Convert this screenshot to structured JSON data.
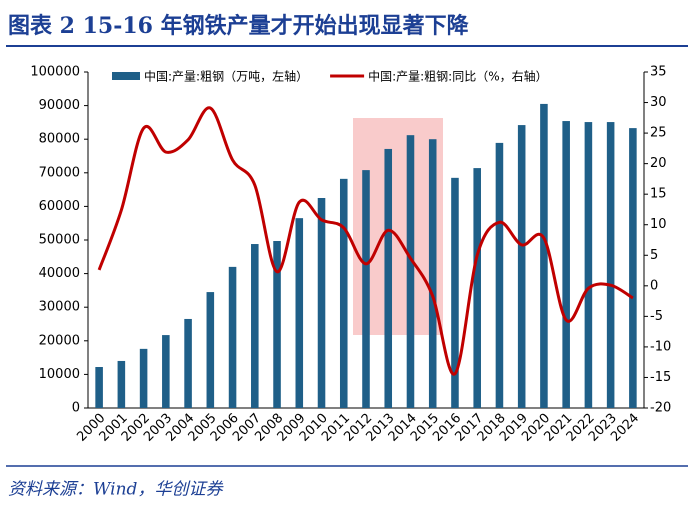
{
  "title": "图表 2   15-16 年钢铁产量才开始出现显著下降",
  "source": "资料来源：Wind，华创证券",
  "chart_data": {
    "type": "bar-line",
    "categories": [
      "2000",
      "2001",
      "2002",
      "2003",
      "2004",
      "2005",
      "2006",
      "2007",
      "2008",
      "2009",
      "2010",
      "2011",
      "2012",
      "2013",
      "2014",
      "2015",
      "2016",
      "2017",
      "2018",
      "2019",
      "2020",
      "2021",
      "2022",
      "2023",
      "2024"
    ],
    "series": [
      {
        "name": "中国:产量:粗钢（万吨，左轴）",
        "type": "bar",
        "color": "#1f5f88",
        "values": [
          12200,
          14000,
          17600,
          21700,
          26500,
          34500,
          42000,
          48800,
          49700,
          56500,
          62500,
          68200,
          70800,
          77100,
          81200,
          80000,
          68500,
          71400,
          78900,
          84200,
          90500,
          85400,
          85100,
          85100,
          83300
        ]
      },
      {
        "name": "中国:产量:粗钢:同比（%，右轴）",
        "type": "line",
        "axis": "y2",
        "color": "#c00000",
        "values": [
          2.6,
          12.4,
          25.8,
          21.9,
          23.9,
          29.1,
          20.6,
          16.5,
          2.3,
          13.7,
          10.8,
          9.5,
          3.6,
          9.1,
          4.5,
          -1.7,
          -14.4,
          5,
          10.4,
          6.7,
          7.8,
          -5.6,
          -0.4,
          0.1,
          -2
        ]
      }
    ],
    "ylim": [
      0,
      100000
    ],
    "yticks": [
      0,
      10000,
      20000,
      30000,
      40000,
      50000,
      60000,
      70000,
      80000,
      90000,
      100000
    ],
    "y2lim": [
      -20,
      35
    ],
    "y2ticks": [
      -20,
      -15,
      -10,
      -5,
      0,
      5,
      10,
      15,
      20,
      25,
      30,
      35
    ],
    "legend": "top"
  }
}
